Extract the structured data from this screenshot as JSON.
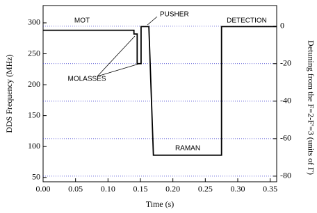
{
  "chart_data": {
    "type": "line",
    "xlabel": "Time (s)",
    "ylabel": "DDS Frequency (MHz)",
    "y2label": "Detuning from the F=2-F'=3 (units of Γ)",
    "annotations": [
      "MOT",
      "PUSHER",
      "DETECTION",
      "MOLASSES",
      "RAMAN"
    ],
    "x": [
      0,
      0.14,
      0.14,
      0.145,
      0.145,
      0.151,
      0.151,
      0.161,
      0.163,
      0.17,
      0.275,
      0.275,
      0.36
    ],
    "values": [
      288,
      288,
      282,
      282,
      234,
      234,
      294,
      294,
      294,
      86,
      86,
      294,
      294
    ],
    "color": "#000000",
    "xlim": [
      0,
      0.36
    ],
    "xticks": [
      {
        "value": 0,
        "label": "0.00"
      },
      0.05,
      {
        "value": 0.1,
        "label": "0.10"
      },
      0.15,
      {
        "value": 0.2,
        "label": "0.20"
      },
      0.25,
      {
        "value": 0.3,
        "label": "0.30"
      },
      0.35
    ],
    "ylim": [
      43,
      328
    ],
    "yticks": [
      50,
      100,
      150,
      200,
      250,
      300
    ],
    "y2lim": [
      -83,
      11
    ],
    "y2ticks": [
      0,
      -20,
      -40,
      -60,
      -80
    ],
    "y2grid": true,
    "grid_color": "#3333cc"
  }
}
